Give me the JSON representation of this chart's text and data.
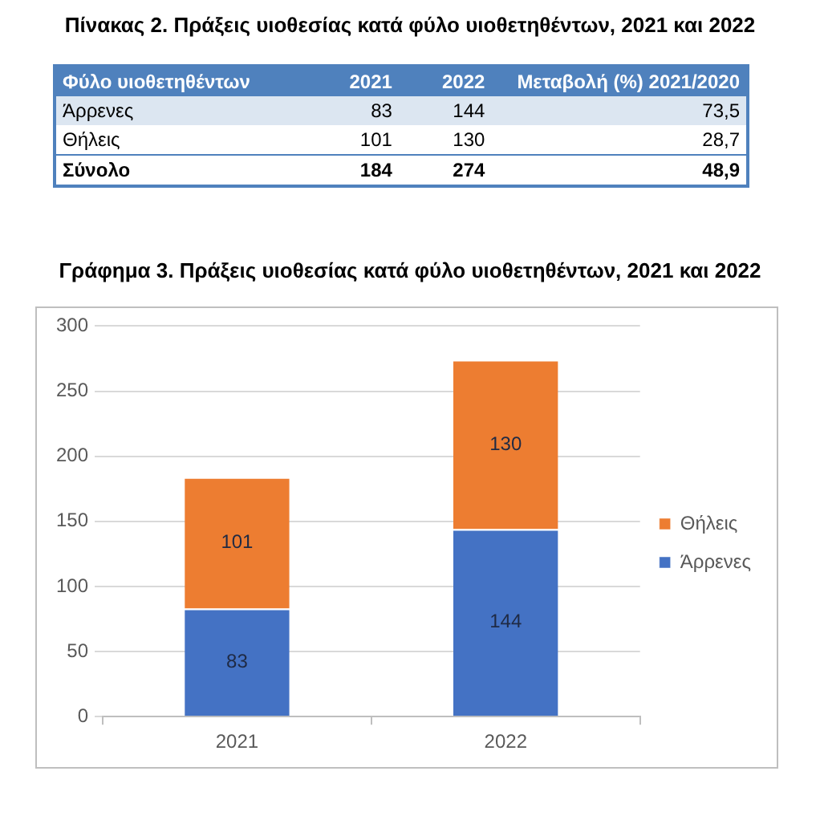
{
  "chart_data": [
    {
      "type": "other",
      "title": "Πίνακας 2. Πράξεις υιοθεσίας κατά φύλο υιοθετηθέντων, 2021 και 2022",
      "xlabel": "Φύλο υιοθετηθέντων",
      "categories": [
        "Άρρενες",
        "Θήλεις",
        "Σύνολο"
      ],
      "series": [
        {
          "name": "2021",
          "values": [
            83,
            101,
            184
          ]
        },
        {
          "name": "2022",
          "values": [
            144,
            130,
            274
          ]
        },
        {
          "name": "Μεταβολή (%) 2021/2020",
          "values": [
            73.5,
            28.7,
            48.9
          ],
          "value_labels": [
            "73,5",
            "28,7",
            "48,9"
          ]
        }
      ],
      "data_labels": true
    },
    {
      "type": "bar",
      "title": "Γράφημα 3. Πράξεις υιοθεσίας κατά φύλο υιοθετηθέντων, 2021 και 2022",
      "categories": [
        "2021",
        "2022"
      ],
      "series": [
        {
          "name": "Άρρενες",
          "color": "#4472c4",
          "values": [
            83,
            144
          ]
        },
        {
          "name": "Θήλεις",
          "color": "#ed7d31",
          "values": [
            101,
            130
          ]
        }
      ],
      "stacked": true,
      "ylim": [
        0,
        300
      ],
      "yticks": [
        0,
        50,
        100,
        150,
        200,
        250,
        300
      ],
      "grid": "y",
      "legend": "right",
      "data_labels": true
    }
  ]
}
